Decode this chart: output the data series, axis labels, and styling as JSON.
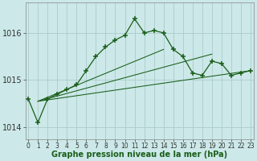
{
  "hours": [
    0,
    1,
    2,
    3,
    4,
    5,
    6,
    7,
    8,
    9,
    10,
    11,
    12,
    13,
    14,
    15,
    16,
    17,
    18,
    19,
    20,
    21,
    22,
    23
  ],
  "pressure": [
    1014.6,
    1014.1,
    1014.6,
    1014.7,
    1014.8,
    1014.9,
    1015.2,
    1015.5,
    1015.7,
    1015.85,
    1015.95,
    1016.3,
    1016.0,
    1016.05,
    1016.0,
    1015.65,
    1015.5,
    1015.15,
    1015.1,
    1015.4,
    1015.35,
    1015.1,
    1015.15,
    1015.2
  ],
  "trend_lines": [
    {
      "x": [
        1,
        23
      ],
      "y": [
        1014.55,
        1015.2
      ]
    },
    {
      "x": [
        1,
        19
      ],
      "y": [
        1014.55,
        1015.55
      ]
    },
    {
      "x": [
        1,
        14
      ],
      "y": [
        1014.55,
        1015.65
      ]
    }
  ],
  "bg_color": "#cce8e8",
  "grid_color": "#aacccc",
  "line_color": "#1a5e1a",
  "ylim": [
    1013.75,
    1016.65
  ],
  "yticks": [
    1014,
    1015,
    1016
  ],
  "xlabel": "Graphe pression niveau de la mer (hPa)"
}
